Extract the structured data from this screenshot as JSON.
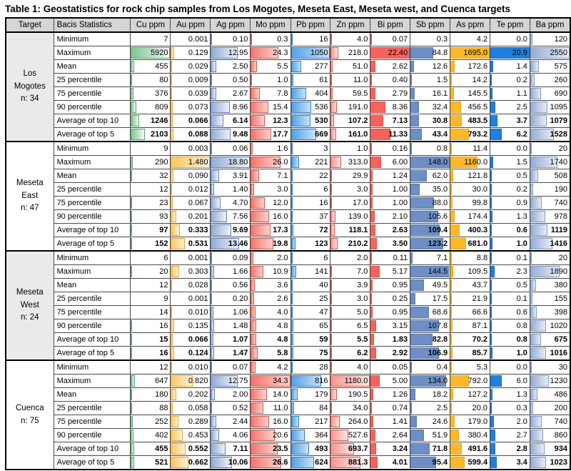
{
  "title": "Table 1: Geostatistics for rock chip samples from Los Mogotes, Meseta East, Meseta west, and Cuenca targets",
  "colors": {
    "header_bg": "#d5d5d5",
    "shaded_target_bg": "#eaeaea",
    "grid_line": "#4a4a4a",
    "outer_border": "#000000"
  },
  "table": {
    "header": {
      "target": "Target",
      "stats": "Bacis Statistics"
    },
    "columns": [
      {
        "label": "Cu ppm",
        "max": 5920,
        "bar": {
          "kind": "gradient",
          "from": "#7dc594",
          "to": "#f0f8f3",
          "border": "#58a471"
        }
      },
      {
        "label": "Au ppm",
        "max": 1.48,
        "bar": {
          "kind": "gradient",
          "from": "#fdc75c",
          "to": "#fdf1d9",
          "border": "#e2a43c"
        }
      },
      {
        "label": "Ag ppm",
        "max": 18.8,
        "bar": {
          "kind": "gradient",
          "from": "#93acd5",
          "to": "#eef2f9",
          "border": "#5d80ba"
        }
      },
      {
        "label": "Mo ppm",
        "max": 34.3,
        "bar": {
          "kind": "gradient",
          "from": "#f4756c",
          "to": "#fbd3cd",
          "border": "#d65550"
        }
      },
      {
        "label": "Pb ppm",
        "max": 1050,
        "bar": {
          "kind": "gradient",
          "from": "#54a1e6",
          "to": "#c6e3f8",
          "border": "#2f7ecb"
        }
      },
      {
        "label": "Zn ppm",
        "max": 1180,
        "bar": {
          "kind": "gradient",
          "from": "#f8968f",
          "to": "#fde5e2",
          "border": "#d65550"
        }
      },
      {
        "label": "Bi ppm",
        "max": 22.4,
        "bar": {
          "kind": "solid",
          "from": "#f8625c",
          "to": "",
          "border": "#e4504b"
        }
      },
      {
        "label": "Sb ppm",
        "max": 148,
        "bar": {
          "kind": "solid",
          "from": "#6d8fc5",
          "to": "",
          "border": "#5c7cb0"
        }
      },
      {
        "label": "As ppm",
        "max": 1695,
        "bar": {
          "kind": "solid",
          "from": "#fdb829",
          "to": "",
          "border": "#eda71c"
        }
      },
      {
        "label": "Te ppm",
        "max": 20.9,
        "bar": {
          "kind": "solid",
          "from": "#1e80e0",
          "to": "",
          "border": "#1a6fc4"
        }
      },
      {
        "label": "Ba ppm",
        "max": 2550,
        "bar": {
          "kind": "gradient",
          "from": "#97aed3",
          "to": "#e6ecf6",
          "border": "#7e9bc7"
        }
      }
    ],
    "bold_rows": [
      "Average of top 10",
      "Average of top 5"
    ],
    "groups": [
      {
        "target_lines": [
          "Los",
          "Mogotes",
          "n: 34"
        ],
        "shaded": true,
        "rows": [
          {
            "label": "Minimum",
            "values": [
              "7",
              "0.001",
              "0.10",
              "0.3",
              "16",
              "4.0",
              "0.07",
              "0.3",
              "4.2",
              "0.0",
              "120"
            ]
          },
          {
            "label": "Maximum",
            "values": [
              "5920",
              "0.129",
              "12.95",
              "24.3",
              "1050",
              "218.0",
              "22.40",
              "84.8",
              "1695.0",
              "20.9",
              "2550"
            ]
          },
          {
            "label": "Mean",
            "values": [
              "455",
              "0.029",
              "2.50",
              "5.5",
              "277",
              "51.0",
              "2.62",
              "12.6",
              "172.6",
              "1.4",
              "575"
            ]
          },
          {
            "label": "25 percentile",
            "values": [
              "80",
              "0.009",
              "0.50",
              "1.0",
              "61",
              "11.0",
              "0.40",
              "1.5",
              "14.2",
              "0.2",
              "260"
            ]
          },
          {
            "label": "75 percentile",
            "values": [
              "376",
              "0.039",
              "2.67",
              "7.8",
              "404",
              "59.5",
              "2.79",
              "16.1",
              "145.5",
              "1.1",
              "690"
            ]
          },
          {
            "label": "90 percentile",
            "values": [
              "809",
              "0.073",
              "8.96",
              "15.4",
              "536",
              "191.0",
              "8.36",
              "32.4",
              "456.5",
              "2.5",
              "1095"
            ]
          },
          {
            "label": "Average of top 10",
            "values": [
              "1246",
              "0.066",
              "6.14",
              "12.3",
              "530",
              "107.2",
              "7.13",
              "30.8",
              "483.5",
              "3.7",
              "1079"
            ]
          },
          {
            "label": "Average of top 5",
            "values": [
              "2103",
              "0.088",
              "9.48",
              "17.7",
              "669",
              "161.0",
              "11.33",
              "43.4",
              "793.2",
              "6.2",
              "1528"
            ]
          }
        ]
      },
      {
        "target_lines": [
          "Meseta",
          "East",
          "n: 47"
        ],
        "shaded": false,
        "rows": [
          {
            "label": "Minimum",
            "values": [
              "9",
              "0.003",
              "0.06",
              "1.6",
              "3",
              "1.0",
              "0.16",
              "0.8",
              "11.4",
              "0.0",
              "20"
            ]
          },
          {
            "label": "Maximum",
            "values": [
              "290",
              "1.480",
              "18.80",
              "26.0",
              "221",
              "313.0",
              "6.00",
              "148.0",
              "1160.0",
              "1.5",
              "1740"
            ]
          },
          {
            "label": "Mean",
            "values": [
              "32",
              "0.090",
              "3.91",
              "7.1",
              "22",
              "29.9",
              "1.24",
              "62.0",
              "121.8",
              "0.5",
              "508"
            ]
          },
          {
            "label": "25 percentile",
            "values": [
              "12",
              "0.012",
              "1.40",
              "3.0",
              "6",
              "3.0",
              "1.00",
              "35.0",
              "30.0",
              "0.2",
              "190"
            ]
          },
          {
            "label": "75 percentile",
            "values": [
              "23",
              "0.067",
              "4.70",
              "12.0",
              "16",
              "17.0",
              "1.00",
              "88.0",
              "99.8",
              "0.9",
              "740"
            ]
          },
          {
            "label": "90 percentile",
            "values": [
              "93",
              "0.201",
              "7.56",
              "16.0",
              "37",
              "139.0",
              "2.10",
              "105.6",
              "174.4",
              "1.3",
              "978"
            ]
          },
          {
            "label": "Average of top 10",
            "values": [
              "97",
              "0.333",
              "9.69",
              "17.3",
              "72",
              "118.1",
              "2.63",
              "109.4",
              "400.3",
              "0.6",
              "1119"
            ]
          },
          {
            "label": "Average of top 5",
            "values": [
              "152",
              "0.531",
              "13.46",
              "19.8",
              "123",
              "210.2",
              "3.50",
              "123.2",
              "681.0",
              "1.0",
              "1416"
            ]
          }
        ]
      },
      {
        "target_lines": [
          "Meseta",
          "West",
          "n: 24"
        ],
        "shaded": true,
        "rows": [
          {
            "label": "Minimum",
            "values": [
              "6",
              "0.001",
              "0.09",
              "2.0",
              "6",
              "2.0",
              "0.11",
              "7.1",
              "8.8",
              "0.1",
              "20"
            ]
          },
          {
            "label": "Maximum",
            "values": [
              "20",
              "0.303",
              "1.66",
              "10.9",
              "141",
              "7.0",
              "5.17",
              "144.5",
              "109.5",
              "2.3",
              "1890"
            ]
          },
          {
            "label": "Mean",
            "values": [
              "12",
              "0.028",
              "0.56",
              "3.6",
              "40",
              "3.9",
              "0.95",
              "49.5",
              "43.7",
              "0.5",
              "380"
            ]
          },
          {
            "label": "25 percentile",
            "values": [
              "9",
              "0.001",
              "0.20",
              "2.6",
              "25",
              "3.0",
              "0.25",
              "17.5",
              "21.9",
              "0.1",
              "155"
            ]
          },
          {
            "label": "75 percentile",
            "values": [
              "14",
              "0.010",
              "1.06",
              "4.0",
              "47",
              "5.0",
              "0.95",
              "68.6",
              "66.6",
              "0.6",
              "398"
            ]
          },
          {
            "label": "90 percentile",
            "values": [
              "16",
              "0.135",
              "1.48",
              "4.8",
              "65",
              "6.5",
              "3.15",
              "107.8",
              "87.1",
              "0.8",
              "1020"
            ]
          },
          {
            "label": "Average of top 10",
            "values": [
              "15",
              "0.066",
              "1.07",
              "4.8",
              "59",
              "5.5",
              "1.83",
              "82.8",
              "70.2",
              "0.8",
              "675"
            ]
          },
          {
            "label": "Average of top 5",
            "values": [
              "16",
              "0.124",
              "1.47",
              "5.8",
              "75",
              "6.2",
              "2.92",
              "106.9",
              "85.7",
              "1.0",
              "1016"
            ]
          }
        ]
      },
      {
        "target_lines": [
          "Cuenca",
          "n: 75"
        ],
        "shaded": false,
        "rows": [
          {
            "label": "Minimum",
            "values": [
              "12",
              "0.010",
              "0.07",
              "4.2",
              "28",
              "4.0",
              "0.05",
              "0.4",
              "5.3",
              "0.0",
              "30"
            ]
          },
          {
            "label": "Maximum",
            "values": [
              "647",
              "0.820",
              "12.75",
              "34.3",
              "816",
              "1180.0",
              "5.00",
              "134.0",
              "792.0",
              "6.0",
              "1230"
            ]
          },
          {
            "label": "Mean",
            "values": [
              "180",
              "0.202",
              "2.00",
              "14.0",
              "179",
              "190.5",
              "1.26",
              "18.2",
              "127.2",
              "1.3",
              "486"
            ]
          },
          {
            "label": "25 percentile",
            "values": [
              "88",
              "0.058",
              "0.52",
              "11.0",
              "84",
              "34.0",
              "0.74",
              "2.5",
              "20.0",
              "0.3",
              "200"
            ]
          },
          {
            "label": "75 percentile",
            "values": [
              "252",
              "0.289",
              "2.44",
              "16.0",
              "217",
              "264.0",
              "1.41",
              "24.6",
              "179.0",
              "2.0",
              "740"
            ]
          },
          {
            "label": "90 percentile",
            "values": [
              "402",
              "0.453",
              "4.06",
              "20.6",
              "364",
              "527.6",
              "2.64",
              "51.9",
              "380.4",
              "2.7",
              "860"
            ]
          },
          {
            "label": "Average of top 10",
            "values": [
              "455",
              "0.552",
              "7.11",
              "23.5",
              "493",
              "693.7",
              "3.24",
              "71.8",
              "491.6",
              "2.8",
              "934"
            ]
          },
          {
            "label": "Average of top 5",
            "values": [
              "521",
              "0.662",
              "10.06",
              "26.6",
              "624",
              "881.3",
              "4.01",
              "95.4",
              "599.4",
              "3.4",
              "1023"
            ]
          }
        ]
      }
    ]
  }
}
